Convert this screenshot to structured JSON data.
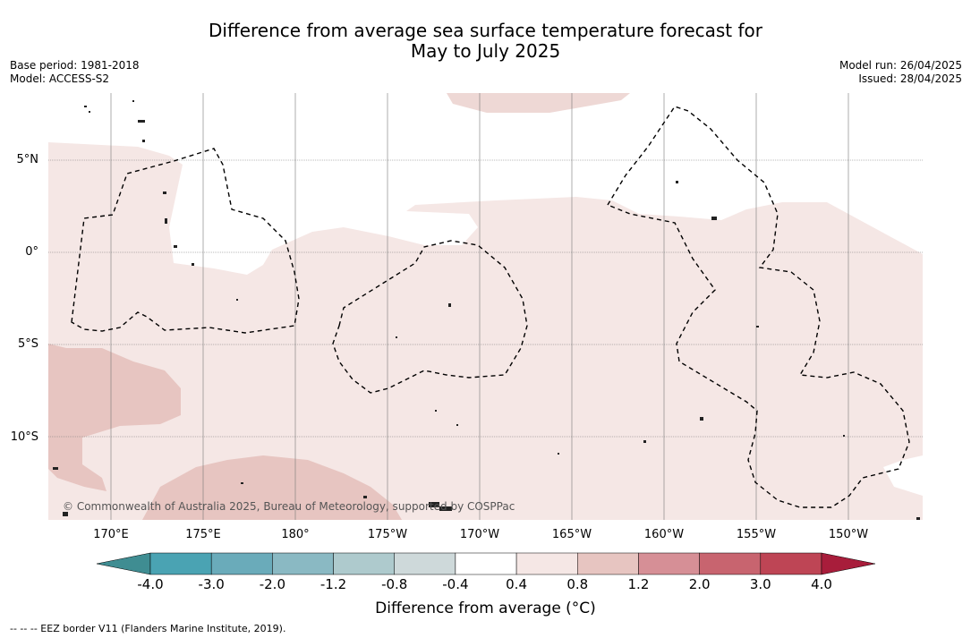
{
  "title_line1": "Difference from average sea surface temperature forecast for",
  "title_line2": "May to July 2025",
  "left_meta": {
    "base_period": "Base period: 1981-2018",
    "model": "Model: ACCESS-S2"
  },
  "right_meta": {
    "model_run": "Model run: 26/04/2025",
    "issued": "Issued: 28/04/2025"
  },
  "lat_labels": [
    "5°N",
    "0°",
    "5°S",
    "10°S"
  ],
  "lon_labels": [
    "170°E",
    "175°E",
    "180°",
    "175°W",
    "170°W",
    "165°W",
    "160°W",
    "155°W",
    "150°W"
  ],
  "copyright": "© Commonwealth of Australia 2025, Bureau of Meteorology, supported by COSPPac",
  "colorbar": {
    "ticks": [
      "-4.0",
      "-3.0",
      "-2.0",
      "-1.2",
      "-0.8",
      "-0.4",
      "0.4",
      "0.8",
      "1.2",
      "2.0",
      "3.0",
      "4.0"
    ],
    "colors": [
      "#3f8d92",
      "#4aa3b3",
      "#6aabba",
      "#8ab9c3",
      "#aecacd",
      "#ced9da",
      "#ffffff",
      "#f5e7e5",
      "#e7c5c1",
      "#d68f96",
      "#c8646f",
      "#be4555",
      "#a81d3b"
    ],
    "label": "Difference from average (°C)"
  },
  "legend_note": "-- -- -- EEZ border V11 (Flanders Marine Institute, 2019).",
  "map_colors": {
    "light_pink": "#f5e7e5",
    "medium_pink": "#e7c5c1",
    "white": "#ffffff"
  }
}
